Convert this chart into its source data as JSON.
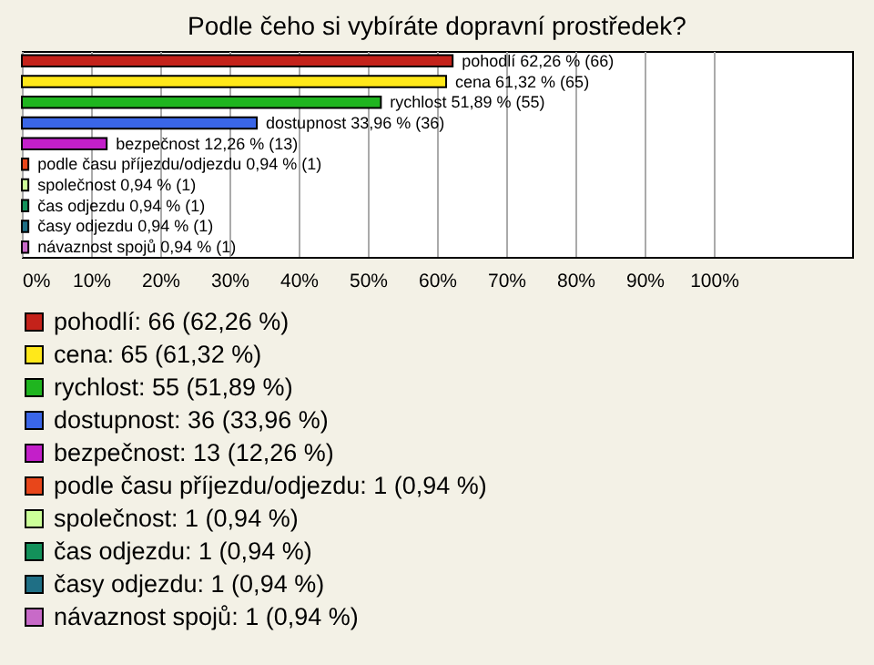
{
  "chart_data": {
    "type": "bar",
    "orientation": "horizontal",
    "title": "Podle čeho si vybíráte dopravní prostředek?",
    "categories": [
      null,
      null,
      null,
      null,
      null,
      null,
      null,
      null,
      null,
      null
    ],
    "series": [
      {
        "name": "pohodlí: 66 (62,26 %)",
        "color": "#c4221a",
        "values": [
          62.26,
          null,
          null,
          null,
          null,
          null,
          null,
          null,
          null,
          null
        ],
        "value_labels": [
          "pohodlí 62,26 % (66)",
          null,
          null,
          null,
          null,
          null,
          null,
          null,
          null,
          null
        ]
      },
      {
        "name": "cena: 65 (61,32 %)",
        "color": "#ffe81a",
        "values": [
          null,
          61.32,
          null,
          null,
          null,
          null,
          null,
          null,
          null,
          null
        ],
        "value_labels": [
          null,
          "cena 61,32 % (65)",
          null,
          null,
          null,
          null,
          null,
          null,
          null,
          null
        ]
      },
      {
        "name": "rychlost: 55 (51,89 %)",
        "color": "#1fb51f",
        "values": [
          null,
          null,
          51.89,
          null,
          null,
          null,
          null,
          null,
          null,
          null
        ],
        "value_labels": [
          null,
          null,
          "rychlost 51,89 % (55)",
          null,
          null,
          null,
          null,
          null,
          null,
          null
        ]
      },
      {
        "name": "dostupnost: 36 (33,96 %)",
        "color": "#3a66e8",
        "values": [
          null,
          null,
          null,
          33.96,
          null,
          null,
          null,
          null,
          null,
          null
        ],
        "value_labels": [
          null,
          null,
          null,
          "dostupnost 33,96 % (36)",
          null,
          null,
          null,
          null,
          null,
          null
        ]
      },
      {
        "name": "bezpečnost: 13 (12,26 %)",
        "color": "#c31fc9",
        "values": [
          null,
          null,
          null,
          null,
          12.26,
          null,
          null,
          null,
          null,
          null
        ],
        "value_labels": [
          null,
          null,
          null,
          null,
          "bezpečnost 12,26 % (13)",
          null,
          null,
          null,
          null,
          null
        ]
      },
      {
        "name": "podle času příjezdu/odjezdu: 1 (0,94 %)",
        "color": "#e8461a",
        "values": [
          null,
          null,
          null,
          null,
          null,
          0.94,
          null,
          null,
          null,
          null
        ],
        "value_labels": [
          null,
          null,
          null,
          null,
          null,
          "podle času příjezdu/odjezdu 0,94 % (1)",
          null,
          null,
          null,
          null
        ]
      },
      {
        "name": "společnost: 1 (0,94 %)",
        "color": "#ccff99",
        "values": [
          null,
          null,
          null,
          null,
          null,
          null,
          0.94,
          null,
          null,
          null
        ],
        "value_labels": [
          null,
          null,
          null,
          null,
          null,
          null,
          "společnost 0,94 % (1)",
          null,
          null,
          null
        ]
      },
      {
        "name": "čas odjezdu: 1 (0,94 %)",
        "color": "#13915a",
        "values": [
          null,
          null,
          null,
          null,
          null,
          null,
          null,
          0.94,
          null,
          null
        ],
        "value_labels": [
          null,
          null,
          null,
          null,
          null,
          null,
          null,
          "čas odjezdu 0,94 % (1)",
          null,
          null
        ]
      },
      {
        "name": "časy odjezdu: 1 (0,94 %)",
        "color": "#1f6f85",
        "values": [
          null,
          null,
          null,
          null,
          null,
          null,
          null,
          null,
          0.94,
          null
        ],
        "value_labels": [
          null,
          null,
          null,
          null,
          null,
          null,
          null,
          null,
          "časy odjezdu 0,94 % (1)",
          null
        ]
      },
      {
        "name": "návaznost spojů: 1 (0,94 %)",
        "color": "#c86ac8",
        "values": [
          null,
          null,
          null,
          null,
          null,
          null,
          null,
          null,
          null,
          0.94
        ],
        "value_labels": [
          null,
          null,
          null,
          null,
          null,
          null,
          null,
          null,
          null,
          "návaznost spojů 0,94 % (1)"
        ]
      }
    ],
    "xlim": [
      0,
      120
    ],
    "xticks": [
      {
        "value": 0,
        "label": "0%"
      },
      {
        "value": 10,
        "label": "10%"
      },
      {
        "value": 20,
        "label": "20%"
      },
      {
        "value": 30,
        "label": "30%"
      },
      {
        "value": 40,
        "label": "40%"
      },
      {
        "value": 50,
        "label": "50%"
      },
      {
        "value": 60,
        "label": "60%"
      },
      {
        "value": 70,
        "label": "70%"
      },
      {
        "value": 80,
        "label": "80%"
      },
      {
        "value": 90,
        "label": "90%"
      },
      {
        "value": 100,
        "label": "100%"
      }
    ],
    "grid": "x",
    "legend": "bottom",
    "tick_labels": "x"
  }
}
